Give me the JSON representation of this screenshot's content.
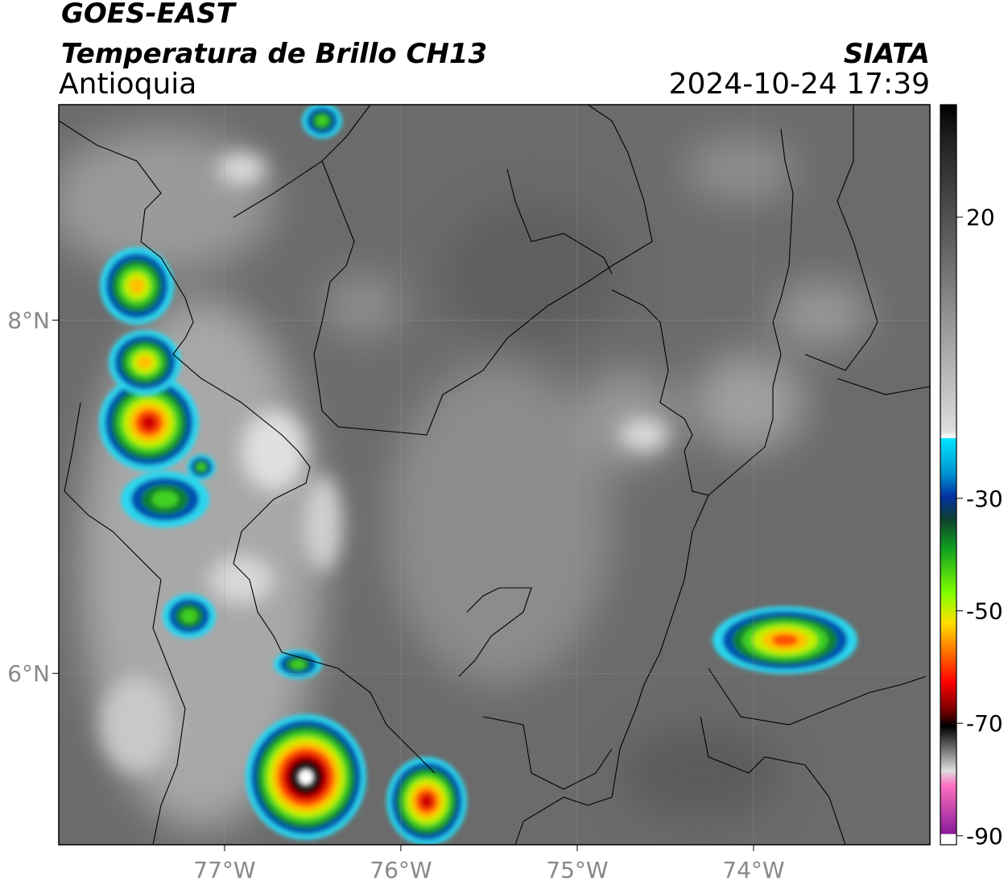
{
  "header": {
    "satellite": "GOES-EAST",
    "product": "Temperatura de Brillo CH13",
    "region": "Antioquia",
    "agency": "SIATA",
    "datetime": "2024-10-24 17:39"
  },
  "map": {
    "lon_lim": [
      -77.94,
      -73.0
    ],
    "lat_lim": [
      5.03,
      9.22
    ],
    "lon_ticks": [
      {
        "value": -77,
        "label": "77°W"
      },
      {
        "value": -76,
        "label": "76°W"
      },
      {
        "value": -75,
        "label": "75°W"
      },
      {
        "value": -74,
        "label": "74°W"
      }
    ],
    "lat_ticks": [
      {
        "value": 8,
        "label": "8°N"
      },
      {
        "value": 6,
        "label": "6°N"
      }
    ]
  },
  "colorbar": {
    "lim": [
      -91.6,
      40
    ],
    "ticks": [
      20,
      -30,
      -50,
      -70,
      -90
    ]
  }
}
